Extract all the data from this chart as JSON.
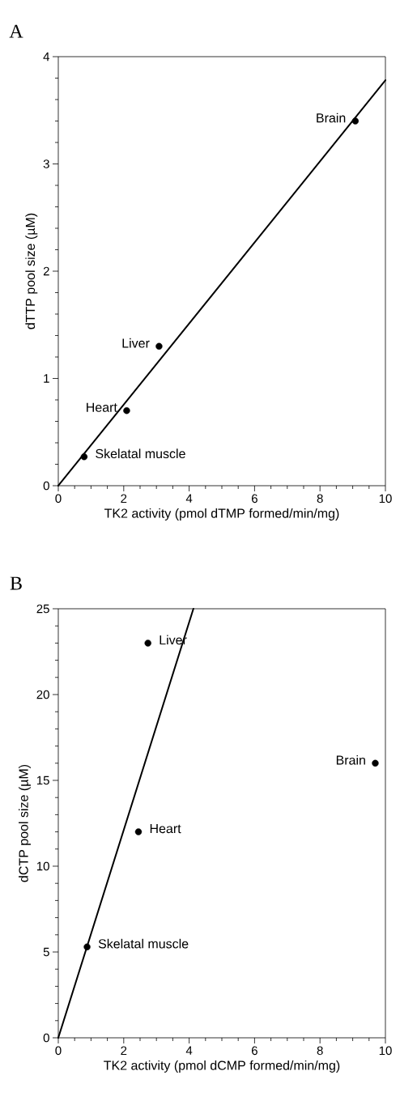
{
  "chart_data": [
    {
      "type": "scatter",
      "title": "A",
      "xlabel": "TK2 activity (pmol dTMP formed/min/mg)",
      "ylabel": "dTTP pool size (µM)",
      "xlim": [
        0,
        10
      ],
      "ylim": [
        0,
        4
      ],
      "xticks": [
        0,
        2,
        4,
        6,
        8,
        10
      ],
      "yticks": [
        0,
        1,
        2,
        3,
        4
      ],
      "series": [
        {
          "type": "scatter",
          "marker": "circle",
          "color": "#000000",
          "x": [
            0.79,
            2.09,
            3.08,
            9.08
          ],
          "values": [
            0.27,
            0.7,
            1.3,
            3.4
          ]
        },
        {
          "type": "line",
          "marker": "none",
          "color": "#000000",
          "x": [
            0,
            10
          ],
          "values": [
            0,
            3.78
          ]
        }
      ],
      "annotations": [
        {
          "text": "Skelatal muscle",
          "x": 0.79,
          "y": 0.27
        },
        {
          "text": "Heart",
          "x": 2.09,
          "y": 0.7
        },
        {
          "text": "Liver",
          "x": 3.08,
          "y": 1.3
        },
        {
          "text": "Brain",
          "x": 9.08,
          "y": 3.4
        }
      ]
    },
    {
      "type": "scatter",
      "title": "B",
      "xlabel": "TK2 activity (pmol dCMP formed/min/mg)",
      "ylabel": "dCTP pool size (µM)",
      "xlim": [
        0,
        10
      ],
      "ylim": [
        0,
        25
      ],
      "xticks": [
        0,
        2,
        4,
        6,
        8,
        10
      ],
      "yticks": [
        0,
        5,
        10,
        15,
        20,
        25
      ],
      "series": [
        {
          "type": "scatter",
          "marker": "circle",
          "color": "#000000",
          "x": [
            0.88,
            2.45,
            2.74,
            9.69
          ],
          "values": [
            5.3,
            12,
            23,
            16
          ]
        },
        {
          "type": "line",
          "marker": "none",
          "color": "#000000",
          "x": [
            0,
            4.13
          ],
          "values": [
            0,
            25
          ]
        }
      ],
      "annotations": [
        {
          "text": "Skelatal muscle",
          "x": 0.88,
          "y": 5.3
        },
        {
          "text": "Heart",
          "x": 2.45,
          "y": 12
        },
        {
          "text": "Liver",
          "x": 2.74,
          "y": 23
        },
        {
          "text": "Brain",
          "x": 9.69,
          "y": 16
        }
      ]
    }
  ]
}
